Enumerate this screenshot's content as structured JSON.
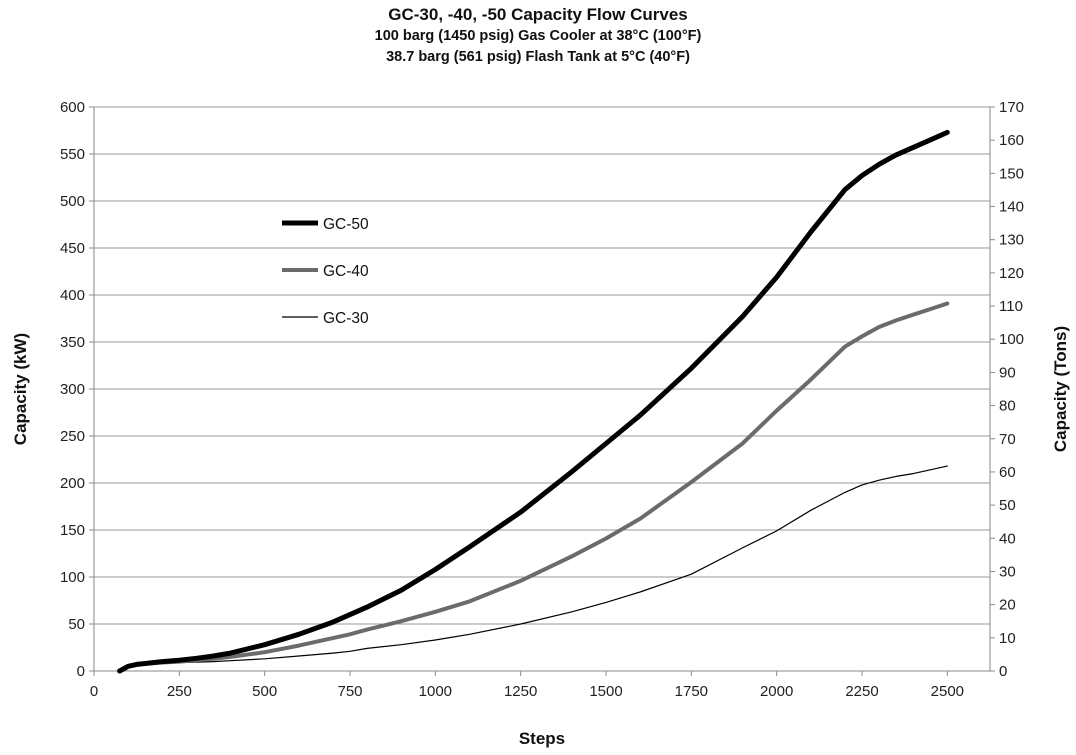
{
  "chart_data": {
    "type": "line",
    "title": "GC-30, -40, -50 Capacity Flow Curves",
    "subtitle_lines": [
      "100 barg (1450 psig) Gas Cooler at 38°C (100°F)",
      "38.7 barg (561 psig) Flash Tank at 5°C (40°F)"
    ],
    "xlabel": "Steps",
    "ylabel": "Capacity (kW)",
    "y2label": "Capacity (Tons)",
    "xlim": [
      0,
      2625
    ],
    "ylim": [
      0,
      600
    ],
    "y2lim": [
      0,
      170
    ],
    "x_ticks": [
      0,
      250,
      500,
      750,
      1000,
      1250,
      1500,
      1750,
      2000,
      2250,
      2500
    ],
    "y_ticks": [
      0,
      50,
      100,
      150,
      200,
      250,
      300,
      350,
      400,
      450,
      500,
      550,
      600
    ],
    "y2_ticks": [
      0,
      10,
      20,
      30,
      40,
      50,
      60,
      70,
      80,
      90,
      100,
      110,
      120,
      130,
      140,
      150,
      160,
      170
    ],
    "grid": "horizontal",
    "legend_position": "upper-left inside plot",
    "series": [
      {
        "name": "GC-50",
        "color": "#000000",
        "width": 5,
        "x": [
          75,
          100,
          125,
          150,
          200,
          250,
          300,
          350,
          400,
          500,
          600,
          700,
          750,
          800,
          900,
          1000,
          1100,
          1250,
          1400,
          1500,
          1600,
          1750,
          1900,
          2000,
          2100,
          2200,
          2250,
          2300,
          2350,
          2400,
          2450,
          2500
        ],
        "values": [
          0,
          5,
          7,
          8,
          10,
          11.5,
          13.5,
          16,
          19,
          28,
          39,
          52,
          60,
          68,
          86,
          108,
          132,
          169,
          212,
          242,
          272,
          322,
          377,
          419,
          467,
          512,
          527,
          539,
          549,
          557,
          565,
          573
        ]
      },
      {
        "name": "GC-40",
        "color": "#6b6b6b",
        "width": 4,
        "x": [
          75,
          100,
          125,
          150,
          200,
          250,
          300,
          350,
          400,
          500,
          600,
          700,
          750,
          800,
          900,
          1000,
          1100,
          1250,
          1400,
          1500,
          1600,
          1750,
          1900,
          2000,
          2100,
          2200,
          2250,
          2300,
          2350,
          2400,
          2450,
          2500
        ],
        "values": [
          0,
          5,
          7,
          8,
          9,
          10,
          11.5,
          13,
          15,
          20,
          27,
          35,
          39,
          44,
          53,
          63,
          74,
          96,
          122,
          141,
          162,
          201,
          242,
          277,
          310,
          345,
          356,
          366,
          373,
          379,
          385,
          391
        ]
      },
      {
        "name": "GC-30",
        "color": "#000000",
        "width": 1.2,
        "x": [
          75,
          100,
          125,
          150,
          200,
          250,
          300,
          350,
          400,
          500,
          600,
          700,
          750,
          800,
          900,
          1000,
          1100,
          1250,
          1400,
          1500,
          1600,
          1750,
          1900,
          2000,
          2100,
          2200,
          2250,
          2300,
          2350,
          2400,
          2450,
          2500
        ],
        "values": [
          0,
          5,
          7,
          8,
          8.5,
          9,
          9.5,
          10,
          11,
          13,
          16,
          19,
          21,
          24,
          28,
          33,
          39,
          50,
          63,
          73,
          84,
          103,
          131,
          149,
          171,
          190,
          198,
          203,
          207,
          210,
          214,
          218
        ]
      }
    ]
  }
}
